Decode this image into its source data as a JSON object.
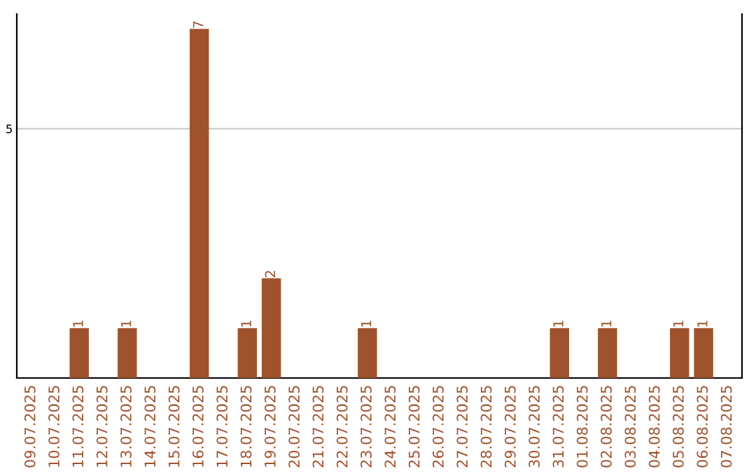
{
  "chart_data": {
    "type": "bar",
    "categories": [
      "09.07.2025",
      "10.07.2025",
      "11.07.2025",
      "12.07.2025",
      "13.07.2025",
      "14.07.2025",
      "15.07.2025",
      "16.07.2025",
      "17.07.2025",
      "18.07.2025",
      "19.07.2025",
      "20.07.2025",
      "21.07.2025",
      "22.07.2025",
      "23.07.2025",
      "24.07.2025",
      "25.07.2025",
      "26.07.2025",
      "27.07.2025",
      "28.07.2025",
      "29.07.2025",
      "30.07.2025",
      "31.07.2025",
      "01.08.2025",
      "02.08.2025",
      "03.08.2025",
      "04.08.2025",
      "05.08.2025",
      "06.08.2025",
      "07.08.2025"
    ],
    "values": [
      0,
      0,
      1,
      0,
      1,
      0,
      0,
      7,
      0,
      1,
      2,
      0,
      0,
      0,
      1,
      0,
      0,
      0,
      0,
      0,
      0,
      0,
      1,
      0,
      1,
      0,
      0,
      1,
      1,
      0
    ],
    "value_labels": [
      null,
      null,
      "1",
      null,
      "1",
      null,
      null,
      "7",
      null,
      "1",
      "2",
      null,
      null,
      null,
      "1",
      null,
      null,
      null,
      null,
      null,
      null,
      null,
      "1",
      null,
      "1",
      null,
      null,
      "1",
      "1",
      null
    ],
    "color": "#a0522d",
    "ylim": [
      0,
      7.3
    ],
    "yticks": [
      5
    ],
    "grid": "y"
  }
}
